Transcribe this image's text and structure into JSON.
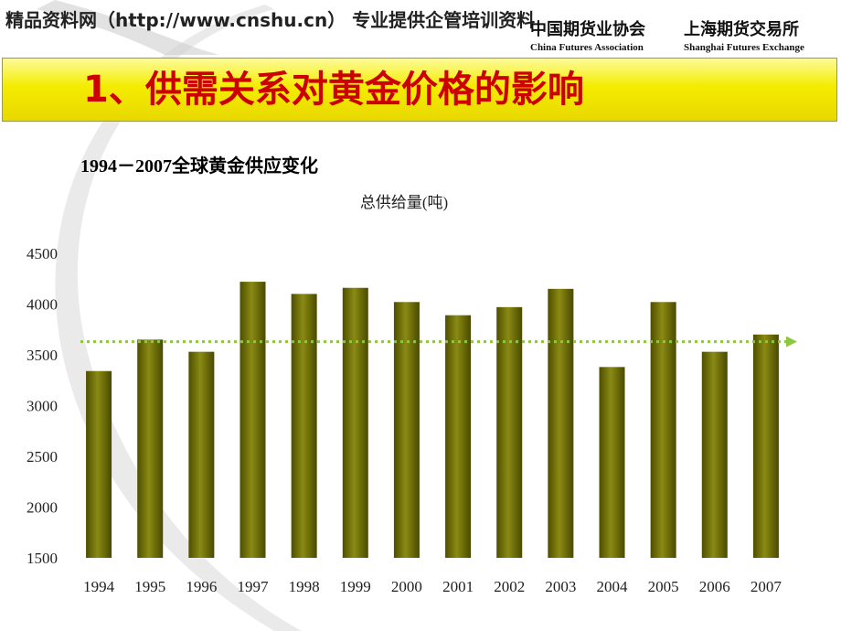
{
  "header": {
    "watermark": "精品资料网（http://www.cnshu.cn） 专业提供企管培训资料",
    "logo_cn_left": "中国期货业协会",
    "logo_cn_right": "上海期货交易所",
    "logo_en_left": "China Futures Association",
    "logo_en_right": "Shanghai Futures Exchange"
  },
  "banner": {
    "title": "1、供需关系对黄金价格的影响"
  },
  "subtitle": "1994－2007全球黄金供应变化",
  "colors": {
    "bar": "#6b6b00",
    "bar_highlight": "#9a9a1e",
    "avg_line": "#8dc63f",
    "banner": "#f4ec00",
    "title_red": "#cc0000"
  },
  "chart_data": {
    "type": "bar",
    "title": "总供给量(吨)",
    "categories": [
      "1994",
      "1995",
      "1996",
      "1997",
      "1998",
      "1999",
      "2000",
      "2001",
      "2002",
      "2003",
      "2004",
      "2005",
      "2006",
      "2007"
    ],
    "values": [
      3340,
      3650,
      3530,
      4220,
      4100,
      4160,
      4020,
      3890,
      3970,
      4150,
      3380,
      4020,
      3530,
      3700
    ],
    "ylim": [
      1500,
      4500
    ],
    "yticks": [
      "4500",
      "4000",
      "3500",
      "3000",
      "2500",
      "2000",
      "1500"
    ],
    "reference_line": {
      "value": 3630,
      "style": "dotted",
      "arrow": "right"
    },
    "grid": false,
    "legend": "none"
  }
}
